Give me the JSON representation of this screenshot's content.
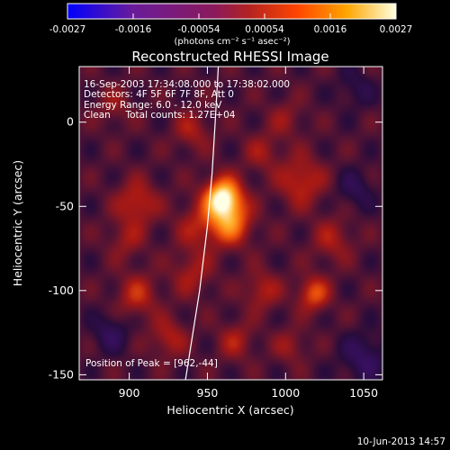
{
  "chart_data": {
    "type": "heatmap",
    "title": "Reconstructed RHESSI Image",
    "xlabel": "Heliocentric X (arcsec)",
    "ylabel": "Heliocentric Y (arcsec)",
    "xlim": [
      868,
      1062
    ],
    "ylim": [
      -153,
      33
    ],
    "x_ticks": [
      900,
      950,
      1000,
      1050
    ],
    "y_ticks": [
      0,
      -50,
      -100,
      -150
    ],
    "colorbar": {
      "range": [
        -0.0027,
        0.0027
      ],
      "ticks": [
        "-0.0027",
        "-0.0016",
        "-0.00054",
        "0.00054",
        "0.0016",
        "0.0027"
      ],
      "unit_label": "(photons cm⁻² s⁻¹ asec⁻²)"
    },
    "annotations": [
      "16-Sep-2003 17:34:08.000 to 17:38:02.000",
      "Detectors: 4F 5F 6F 7F 8F, Att 0",
      "Energy Range: 6.0 - 12.0 keV",
      "Clean     Total counts: 1.27E+04"
    ],
    "peak_label": "Position of Peak = [962,-44]",
    "footer_date": "10-Jun-2013 14:57",
    "peak": {
      "x": 962,
      "y": -44,
      "value": 0.0027
    },
    "sources": [
      {
        "x": 960,
        "y": -45,
        "sigma": 8,
        "value": 0.0028
      },
      {
        "x": 965,
        "y": -60,
        "sigma": 9,
        "value": 0.0016
      },
      {
        "x": 945,
        "y": -62,
        "sigma": 10,
        "value": 0.0008
      },
      {
        "x": 905,
        "y": -48,
        "sigma": 9,
        "value": 0.001
      },
      {
        "x": 898,
        "y": -70,
        "sigma": 8,
        "value": 0.0006
      },
      {
        "x": 1010,
        "y": -35,
        "sigma": 10,
        "value": 0.001
      },
      {
        "x": 1030,
        "y": -70,
        "sigma": 9,
        "value": 0.0007
      },
      {
        "x": 1018,
        "y": -102,
        "sigma": 7,
        "value": 0.0013
      },
      {
        "x": 985,
        "y": -100,
        "sigma": 8,
        "value": 0.0008
      },
      {
        "x": 940,
        "y": -90,
        "sigma": 9,
        "value": 0.0007
      },
      {
        "x": 905,
        "y": -103,
        "sigma": 9,
        "value": 0.0009
      },
      {
        "x": 925,
        "y": -128,
        "sigma": 8,
        "value": 0.0008
      },
      {
        "x": 968,
        "y": -130,
        "sigma": 8,
        "value": 0.0007
      },
      {
        "x": 1003,
        "y": -133,
        "sigma": 7,
        "value": 0.0006
      },
      {
        "x": 940,
        "y": -5,
        "sigma": 8,
        "value": 0.0007
      },
      {
        "x": 1000,
        "y": 2,
        "sigma": 8,
        "value": 0.0005
      },
      {
        "x": 985,
        "y": -18,
        "sigma": 8,
        "value": 0.0006
      },
      {
        "x": 890,
        "y": 10,
        "sigma": 8,
        "value": 0.0005
      },
      {
        "x": 888,
        "y": -125,
        "sigma": 8,
        "value": -0.0007
      },
      {
        "x": 1045,
        "y": -40,
        "sigma": 8,
        "value": -0.0006
      },
      {
        "x": 1050,
        "y": -140,
        "sigma": 10,
        "value": -0.0008
      },
      {
        "x": 1045,
        "y": 20,
        "sigma": 8,
        "value": -0.0005
      }
    ],
    "limb_curve": [
      [
        936,
        -153
      ],
      [
        945,
        -100
      ],
      [
        950,
        -62
      ],
      [
        953,
        -30
      ],
      [
        955,
        0
      ],
      [
        957,
        33
      ]
    ],
    "colormap_stops": [
      "#0000ff",
      "#4b0082",
      "#800080",
      "#b22222",
      "#ff4500",
      "#ffa500",
      "#ffff99",
      "#ffffff"
    ]
  }
}
